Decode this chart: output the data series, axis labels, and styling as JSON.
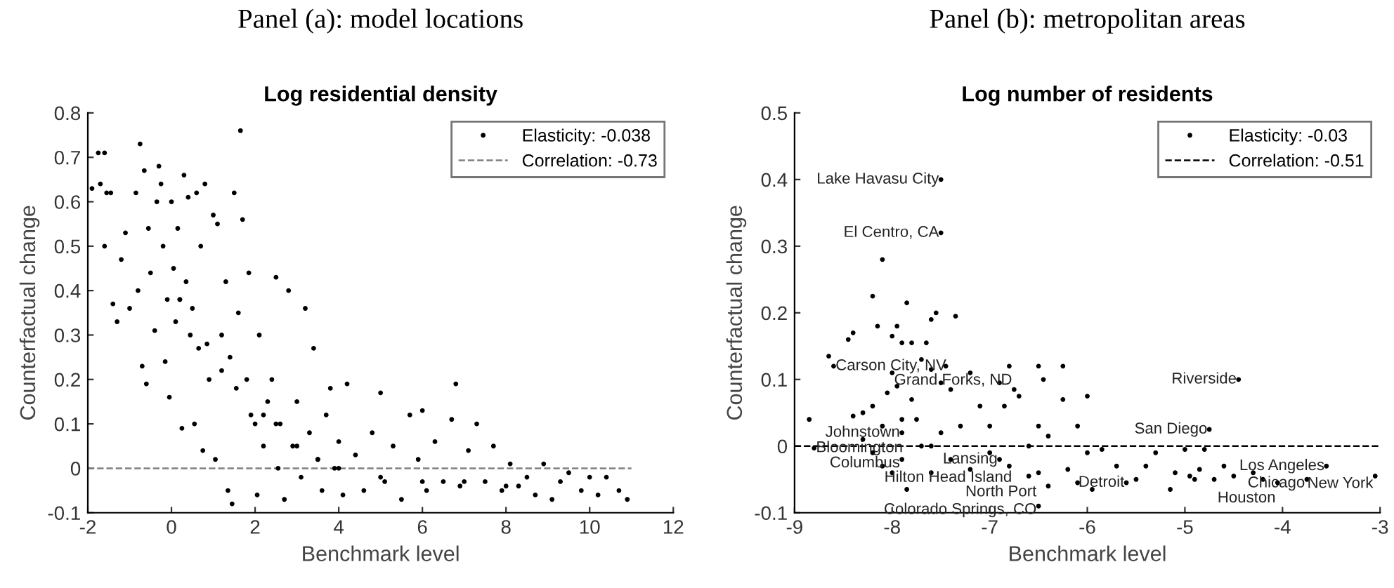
{
  "chart_data": [
    {
      "type": "scatter",
      "title": "Panel (a): model locations",
      "subtitle": "Log residential density",
      "xlabel": "Benchmark level",
      "ylabel": "Counterfactual change",
      "xlim": [
        -2,
        12
      ],
      "xticks": [
        -2,
        0,
        2,
        4,
        6,
        8,
        10,
        12
      ],
      "ylim": [
        -0.1,
        0.8
      ],
      "yticks": [
        -0.1,
        0,
        0.1,
        0.2,
        0.3,
        0.4,
        0.5,
        0.6,
        0.7,
        0.8
      ],
      "legend": "top right",
      "marker": "circle",
      "grid": false,
      "series": [
        {
          "name": "Correlation: -0.73",
          "type": "line",
          "color": "#808080",
          "line_style": "dashed",
          "marker": "none",
          "x": [
            -2,
            11
          ],
          "values": [
            0,
            0
          ]
        },
        {
          "name": "Elasticity: -0.038",
          "color": "#000000",
          "x": [
            -1.9,
            -1.75,
            -1.6,
            -1.7,
            -1.55,
            -1.45,
            -1.6,
            -1.4,
            -1.3,
            -1.2,
            -1.1,
            -1.0,
            -0.85,
            -0.8,
            -0.75,
            -0.7,
            -0.65,
            -0.6,
            -0.55,
            -0.5,
            -0.4,
            -0.35,
            -0.3,
            -0.25,
            -0.2,
            -0.15,
            -0.1,
            -0.05,
            0.0,
            0.05,
            0.1,
            0.15,
            0.2,
            0.25,
            0.3,
            0.35,
            0.4,
            0.45,
            0.5,
            0.55,
            0.6,
            0.65,
            0.7,
            0.75,
            0.8,
            0.85,
            0.9,
            1.0,
            1.05,
            1.1,
            1.2,
            1.3,
            1.35,
            1.4,
            1.45,
            1.5,
            1.55,
            1.6,
            1.65,
            1.7,
            1.8,
            1.85,
            1.9,
            2.0,
            2.05,
            2.1,
            2.2,
            2.3,
            2.4,
            2.5,
            2.55,
            2.6,
            2.7,
            2.8,
            2.9,
            3.0,
            3.1,
            3.2,
            3.3,
            3.4,
            3.5,
            3.6,
            3.7,
            3.8,
            3.9,
            4.0,
            4.1,
            4.2,
            4.4,
            4.6,
            4.8,
            5.0,
            5.1,
            5.3,
            5.5,
            5.7,
            5.9,
            6.0,
            6.1,
            6.3,
            6.5,
            6.7,
            6.8,
            6.9,
            7.1,
            7.3,
            7.5,
            7.7,
            7.9,
            8.1,
            8.3,
            8.5,
            8.7,
            8.9,
            9.1,
            9.3,
            9.5,
            9.8,
            10.0,
            10.2,
            10.4,
            10.7,
            10.9,
            2.5,
            3.0,
            4.0,
            5.0,
            6.0,
            7.0,
            8.0,
            0.2,
            1.2,
            2.2,
            3.5
          ],
          "values": [
            0.63,
            0.71,
            0.71,
            0.64,
            0.62,
            0.62,
            0.5,
            0.37,
            0.33,
            0.47,
            0.53,
            0.36,
            0.62,
            0.4,
            0.73,
            0.23,
            0.67,
            0.19,
            0.54,
            0.44,
            0.31,
            0.6,
            0.68,
            0.64,
            0.5,
            0.24,
            0.38,
            0.16,
            0.6,
            0.45,
            0.33,
            0.54,
            0.38,
            0.09,
            0.66,
            0.42,
            0.61,
            0.3,
            0.36,
            0.1,
            0.62,
            0.27,
            0.5,
            0.04,
            0.64,
            0.28,
            0.2,
            0.57,
            0.02,
            0.55,
            0.3,
            0.42,
            -0.05,
            0.25,
            -0.08,
            0.62,
            0.18,
            0.35,
            0.76,
            0.56,
            0.2,
            0.44,
            0.12,
            0.1,
            -0.06,
            0.3,
            0.05,
            0.15,
            0.2,
            0.43,
            0.0,
            0.1,
            -0.07,
            0.4,
            0.05,
            0.15,
            -0.02,
            0.36,
            0.08,
            0.27,
            0.02,
            -0.05,
            0.12,
            0.18,
            0.0,
            0.06,
            -0.06,
            0.19,
            0.03,
            -0.05,
            0.08,
            0.17,
            -0.03,
            0.05,
            -0.07,
            0.12,
            0.02,
            0.13,
            -0.05,
            0.06,
            -0.03,
            0.11,
            0.19,
            -0.04,
            0.04,
            0.1,
            -0.03,
            0.05,
            -0.05,
            0.01,
            -0.04,
            -0.02,
            -0.06,
            0.01,
            -0.07,
            -0.03,
            -0.01,
            -0.05,
            -0.02,
            -0.06,
            -0.02,
            -0.05,
            -0.07,
            0.1,
            0.05,
            0.0,
            -0.02,
            -0.03,
            -0.03,
            -0.04,
            0.38,
            0.22,
            0.12,
            0.02
          ]
        }
      ]
    },
    {
      "type": "scatter",
      "title": "Panel (b): metropolitan areas",
      "subtitle": "Log number of residents",
      "xlabel": "Benchmark level",
      "ylabel": "Counterfactual change",
      "xlim": [
        -9,
        -3
      ],
      "xticks": [
        -9,
        -8,
        -7,
        -6,
        -5,
        -4,
        -3
      ],
      "ylim": [
        -0.1,
        0.5
      ],
      "yticks": [
        -0.1,
        0,
        0.1,
        0.2,
        0.3,
        0.4,
        0.5
      ],
      "legend": "top right",
      "marker": "circle",
      "grid": false,
      "annotations": [
        {
          "text": "Lake Havasu City",
          "x": -7.5,
          "y": 0.4
        },
        {
          "text": "El Centro, CA",
          "x": -7.5,
          "y": 0.32
        },
        {
          "text": "Carson City, NV",
          "x": -8.6,
          "y": 0.12
        },
        {
          "text": "Grand Forks, ND",
          "x": -8.0,
          "y": 0.11
        },
        {
          "text": "Riverside",
          "x": -4.45,
          "y": 0.1
        },
        {
          "text": "San Diego",
          "x": -4.75,
          "y": 0.025
        },
        {
          "text": "Johnstown",
          "x": -7.9,
          "y": 0.02
        },
        {
          "text": "Bloomington",
          "x": -8.8,
          "y": -0.003
        },
        {
          "text": "Columbus",
          "x": -7.9,
          "y": -0.02
        },
        {
          "text": "Hilton Head Island",
          "x": -8.1,
          "y": -0.03
        },
        {
          "text": "Lansing",
          "x": -6.9,
          "y": -0.02
        },
        {
          "text": "North Port",
          "x": -6.5,
          "y": -0.04
        },
        {
          "text": "Detroit",
          "x": -5.6,
          "y": -0.055
        },
        {
          "text": "Los Angeles",
          "x": -3.55,
          "y": -0.03
        },
        {
          "text": "New York",
          "x": -3.05,
          "y": -0.045
        },
        {
          "text": "Houston",
          "x": -4.05,
          "y": -0.055
        },
        {
          "text": "Chicago",
          "x": -3.75,
          "y": -0.05
        },
        {
          "text": "Colorado Springs, CO",
          "x": -6.5,
          "y": -0.09
        }
      ],
      "series": [
        {
          "name": "Correlation: -0.51",
          "type": "line",
          "color": "#000000",
          "line_style": "dashed",
          "marker": "none",
          "x": [
            -9,
            -3
          ],
          "values": [
            0,
            0
          ]
        },
        {
          "name": "Elasticity: -0.03",
          "color": "#000000",
          "x": [
            -7.5,
            -7.5,
            -8.6,
            -8.0,
            -4.45,
            -4.75,
            -7.9,
            -8.8,
            -7.9,
            -8.1,
            -6.9,
            -6.5,
            -5.6,
            -3.55,
            -3.05,
            -4.05,
            -3.75,
            -6.5,
            -8.85,
            -8.65,
            -8.45,
            -8.4,
            -8.4,
            -8.3,
            -8.2,
            -8.2,
            -8.15,
            -8.1,
            -8.1,
            -8.05,
            -8.0,
            -7.95,
            -7.95,
            -7.9,
            -7.85,
            -7.8,
            -7.8,
            -7.75,
            -7.7,
            -7.7,
            -7.65,
            -7.6,
            -7.6,
            -7.55,
            -7.5,
            -7.5,
            -7.45,
            -7.4,
            -7.35,
            -7.3,
            -7.2,
            -7.1,
            -7.0,
            -6.9,
            -6.85,
            -6.8,
            -6.75,
            -6.7,
            -6.6,
            -6.5,
            -6.45,
            -6.5,
            -6.4,
            -6.25,
            -6.25,
            -6.1,
            -6.0,
            -6.0,
            -5.95,
            -5.85,
            -5.7,
            -5.5,
            -5.4,
            -5.3,
            -5.15,
            -5.1,
            -5.0,
            -4.95,
            -4.9,
            -4.85,
            -4.8,
            -4.7,
            -4.6,
            -4.5,
            -4.3,
            -4.2,
            -8.0,
            -7.85,
            -7.6,
            -7.4,
            -7.2,
            -7.0,
            -6.8,
            -6.6,
            -6.4,
            -6.2,
            -6.1,
            -8.3,
            -8.2,
            -7.9,
            -7.6
          ],
          "values": [
            0.4,
            0.32,
            0.12,
            0.11,
            0.1,
            0.025,
            0.02,
            -0.003,
            -0.02,
            -0.03,
            -0.02,
            -0.04,
            -0.055,
            -0.03,
            -0.045,
            -0.055,
            -0.05,
            -0.09,
            0.04,
            0.135,
            0.16,
            0.17,
            0.045,
            0.05,
            0.225,
            0.06,
            0.18,
            0.28,
            0.03,
            0.08,
            0.165,
            0.09,
            0.18,
            0.155,
            0.215,
            0.07,
            0.155,
            0.04,
            0.13,
            0.0,
            0.155,
            0.115,
            0.19,
            0.2,
            0.095,
            0.02,
            0.12,
            0.085,
            0.195,
            0.03,
            0.11,
            0.06,
            0.03,
            0.095,
            0.06,
            0.12,
            0.085,
            0.075,
            0.0,
            0.12,
            0.1,
            0.03,
            0.015,
            0.12,
            0.07,
            0.03,
            0.075,
            -0.01,
            -0.065,
            -0.005,
            -0.03,
            -0.05,
            -0.03,
            -0.01,
            -0.065,
            -0.04,
            -0.005,
            -0.045,
            -0.05,
            -0.035,
            -0.005,
            -0.05,
            -0.03,
            -0.045,
            -0.04,
            -0.05,
            -0.04,
            -0.065,
            -0.04,
            -0.02,
            -0.035,
            -0.01,
            -0.03,
            -0.045,
            -0.06,
            -0.035,
            -0.055,
            0.01,
            -0.01,
            0.04,
            0.0
          ]
        }
      ]
    }
  ]
}
